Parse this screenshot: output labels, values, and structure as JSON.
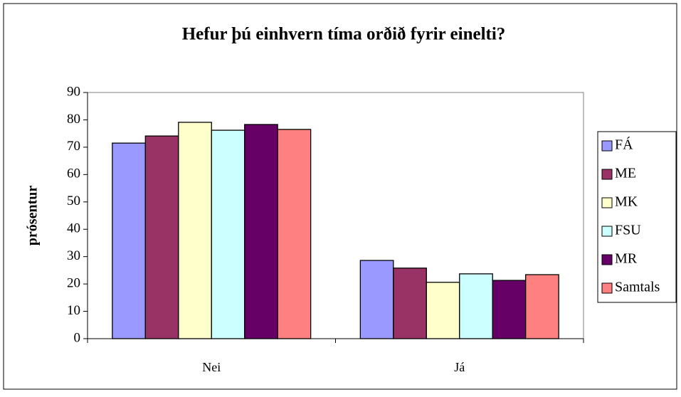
{
  "chart_data": {
    "type": "bar",
    "title": "Hefur þú einhvern tíma orðið fyrir einelti?",
    "ylabel": "prósentur",
    "categories": [
      "Nei",
      "Já"
    ],
    "series": [
      {
        "name": "FÁ",
        "color": "#9999ff",
        "values": [
          71.5,
          28.6
        ]
      },
      {
        "name": "ME",
        "color": "#993366",
        "values": [
          74.1,
          25.8
        ]
      },
      {
        "name": "MK",
        "color": "#ffffcc",
        "values": [
          79.1,
          20.6
        ]
      },
      {
        "name": "FSU",
        "color": "#ccffff",
        "values": [
          76.2,
          23.7
        ]
      },
      {
        "name": "MR",
        "color": "#660066",
        "values": [
          78.3,
          21.3
        ]
      },
      {
        "name": "Samtals",
        "color": "#ff8080",
        "values": [
          76.5,
          23.4
        ]
      }
    ],
    "ylim": [
      0,
      90
    ],
    "yticks": [
      0,
      10,
      20,
      30,
      40,
      50,
      60,
      70,
      80,
      90
    ],
    "legend": "right"
  }
}
